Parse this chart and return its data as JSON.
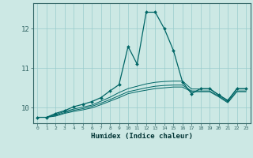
{
  "xlabel": "Humidex (Indice chaleur)",
  "bg_color": "#cce8e4",
  "grid_color": "#99cccc",
  "line_color": "#006666",
  "xlim": [
    -0.5,
    23.5
  ],
  "ylim": [
    9.6,
    12.65
  ],
  "yticks": [
    10,
    11,
    12
  ],
  "xticks": [
    0,
    1,
    2,
    3,
    4,
    5,
    6,
    7,
    8,
    9,
    10,
    11,
    12,
    13,
    14,
    15,
    16,
    17,
    18,
    19,
    20,
    21,
    22,
    23
  ],
  "series": [
    [
      9.75,
      9.75,
      9.85,
      9.92,
      10.02,
      10.08,
      10.15,
      10.25,
      10.42,
      10.58,
      11.55,
      11.1,
      12.42,
      12.42,
      12.0,
      11.45,
      10.65,
      10.35,
      10.48,
      10.48,
      10.32,
      10.18,
      10.48,
      10.48
    ],
    [
      9.75,
      9.75,
      9.82,
      9.9,
      9.96,
      10.01,
      10.06,
      10.16,
      10.26,
      10.38,
      10.48,
      10.54,
      10.6,
      10.64,
      10.66,
      10.67,
      10.67,
      10.47,
      10.47,
      10.47,
      10.32,
      10.17,
      10.47,
      10.47
    ],
    [
      9.75,
      9.75,
      9.8,
      9.87,
      9.93,
      9.97,
      10.03,
      10.11,
      10.2,
      10.3,
      10.4,
      10.45,
      10.5,
      10.54,
      10.56,
      10.57,
      10.57,
      10.42,
      10.42,
      10.42,
      10.29,
      10.14,
      10.42,
      10.42
    ],
    [
      9.75,
      9.75,
      9.78,
      9.85,
      9.9,
      9.94,
      9.99,
      10.07,
      10.16,
      10.25,
      10.35,
      10.4,
      10.44,
      10.48,
      10.5,
      10.52,
      10.52,
      10.4,
      10.4,
      10.4,
      10.27,
      10.12,
      10.4,
      10.4
    ]
  ]
}
